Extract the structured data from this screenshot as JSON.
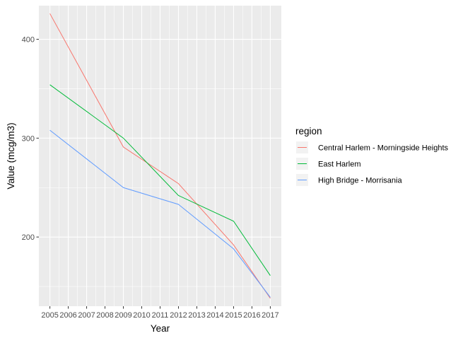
{
  "chart_data": {
    "type": "line",
    "title": "",
    "xlabel": "Year",
    "ylabel": "Value (mcg/m3)",
    "x": [
      2005,
      2006,
      2007,
      2008,
      2009,
      2010,
      2011,
      2012,
      2013,
      2014,
      2015,
      2016,
      2017
    ],
    "xlim": [
      2004.4,
      2017.6
    ],
    "ylim": [
      130,
      434
    ],
    "yticks": [
      200,
      300,
      400
    ],
    "grid": true,
    "legend": {
      "title": "region",
      "position": "right"
    },
    "series": [
      {
        "name": "Central Harlem - Morningside Heights",
        "color": "#F8766D",
        "points": [
          [
            2005,
            426
          ],
          [
            2009,
            291
          ],
          [
            2012,
            254
          ],
          [
            2015,
            192
          ],
          [
            2017,
            138
          ]
        ]
      },
      {
        "name": "East Harlem",
        "color": "#00BA38",
        "points": [
          [
            2005,
            354
          ],
          [
            2009,
            300
          ],
          [
            2012,
            242
          ],
          [
            2015,
            216
          ],
          [
            2017,
            161
          ]
        ]
      },
      {
        "name": "High Bridge - Morrisania",
        "color": "#619CFF",
        "points": [
          [
            2005,
            308
          ],
          [
            2009,
            250
          ],
          [
            2012,
            233
          ],
          [
            2015,
            188
          ],
          [
            2017,
            139
          ]
        ]
      }
    ]
  }
}
